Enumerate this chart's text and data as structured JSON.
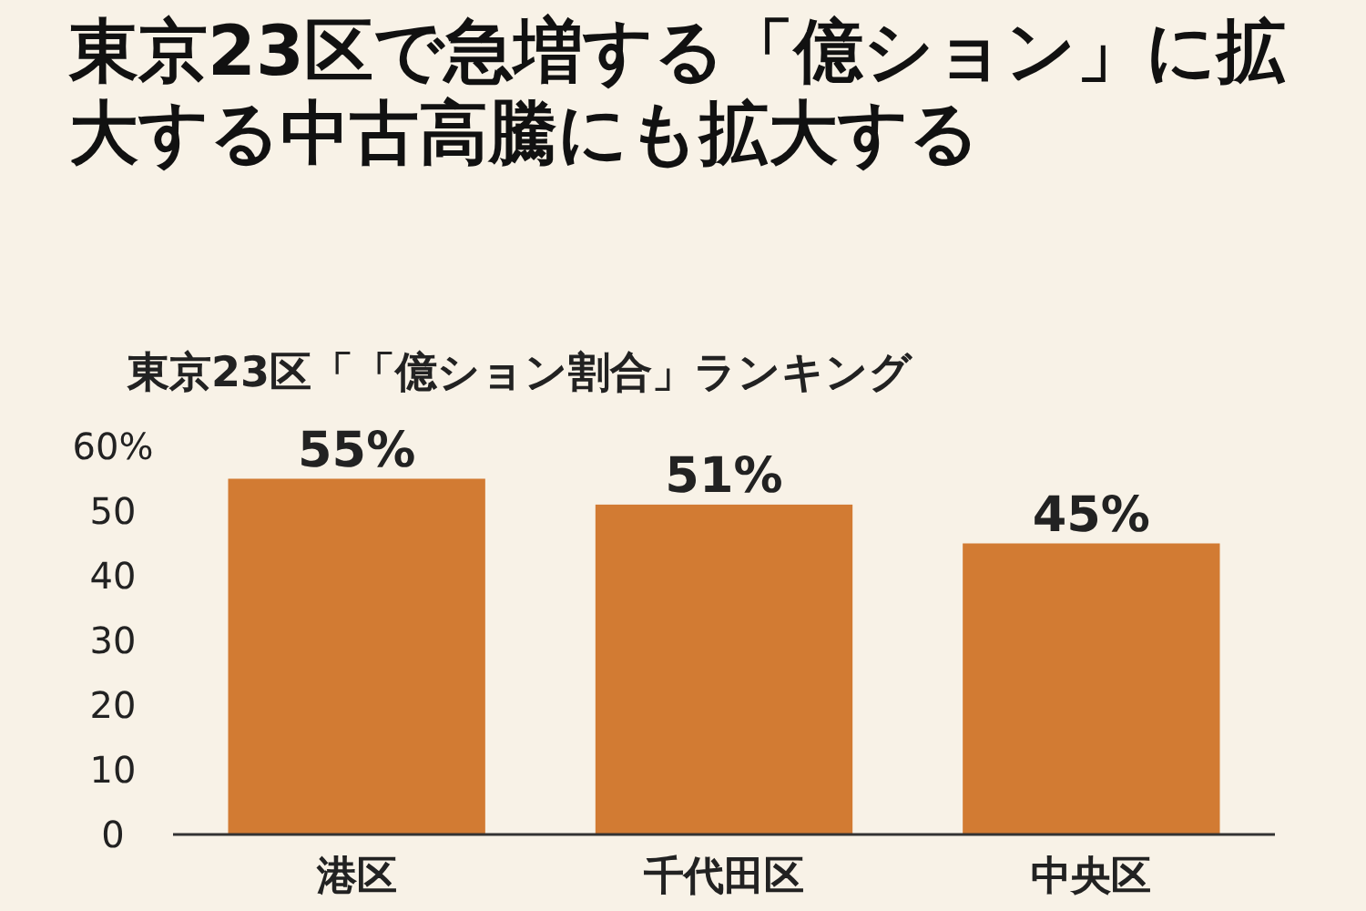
{
  "chart_data": {
    "type": "bar",
    "title": "東京23区で急増する「億ション」に拡大する中古高騰にも拡大する",
    "subtitle": "東京23区「「億ション割合」ランキング",
    "categories": [
      "港区",
      "千代田区",
      "中央区"
    ],
    "values": [
      55,
      51,
      45
    ],
    "color": "#d27b33",
    "value_labels": [
      "55%",
      "51%",
      "45%"
    ],
    "ylim": [
      0,
      60
    ],
    "yticks": [
      0,
      10,
      20,
      30,
      40,
      50,
      {
        "value": 60,
        "label": "60%"
      }
    ],
    "grid": false
  }
}
